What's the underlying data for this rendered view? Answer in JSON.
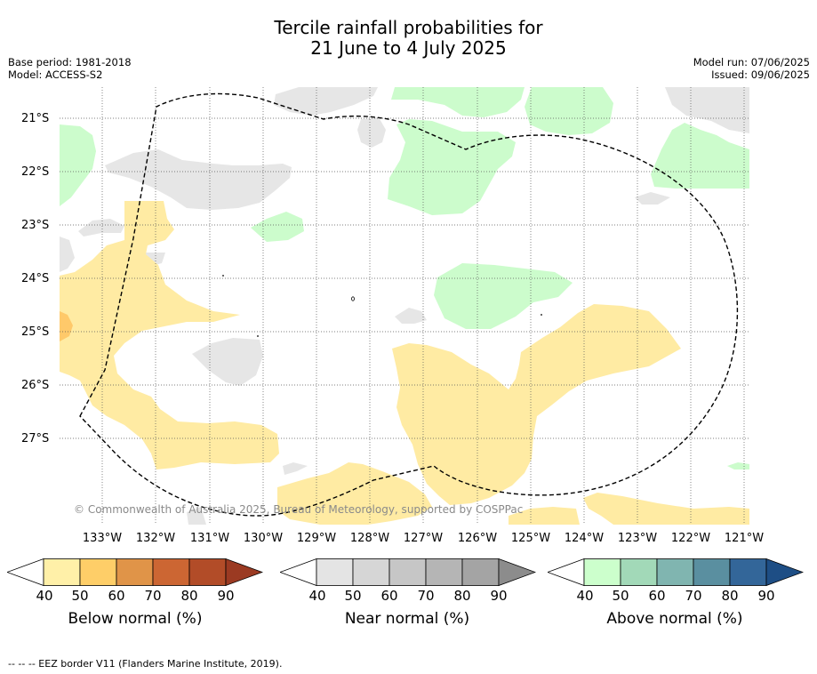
{
  "title_line1": "Tercile rainfall probabilities for",
  "title_line2": "21 June to 4 July 2025",
  "base_period": "Base period: 1981-2018",
  "model": "Model: ACCESS-S2",
  "model_run": "Model run: 07/06/2025",
  "issued": "Issued: 09/06/2025",
  "copyright": "© Commonwealth of Australia 2025, Bureau of Meteorology, supported by COSPPac",
  "footnote": "--  --  -- EEZ border V11 (Flanders Marine Institute, 2019).",
  "lat_labels": [
    "21°S",
    "22°S",
    "23°S",
    "24°S",
    "25°S",
    "26°S",
    "27°S"
  ],
  "lon_labels": [
    "133°W",
    "132°W",
    "131°W",
    "130°W",
    "129°W",
    "128°W",
    "127°W",
    "126°W",
    "125°W",
    "124°W",
    "123°W",
    "122°W",
    "121°W"
  ],
  "colorbars": [
    {
      "label": "Below normal (%)",
      "ticks": [
        "40",
        "50",
        "60",
        "70",
        "80",
        "90"
      ],
      "colors": [
        "#fff0a8",
        "#fece68",
        "#e09448",
        "#cc6633",
        "#b24c28",
        "#9b3a22"
      ]
    },
    {
      "label": "Near normal (%)",
      "ticks": [
        "40",
        "50",
        "60",
        "70",
        "80",
        "90"
      ],
      "colors": [
        "#e4e4e4",
        "#d6d6d6",
        "#c6c6c6",
        "#b5b5b5",
        "#a4a4a4",
        "#8c8c8c"
      ]
    },
    {
      "label": "Above normal (%)",
      "ticks": [
        "40",
        "50",
        "60",
        "70",
        "80",
        "90"
      ],
      "colors": [
        "#ccffcc",
        "#a2d9b8",
        "#80b5b0",
        "#5a8fa0",
        "#336699",
        "#1e4e85"
      ]
    }
  ],
  "map_colors": {
    "below_normal": "#ffeba3",
    "below_normal_strong": "#ffc96a",
    "near_normal": "#e6e6e6",
    "above_normal": "#ccfccc"
  }
}
